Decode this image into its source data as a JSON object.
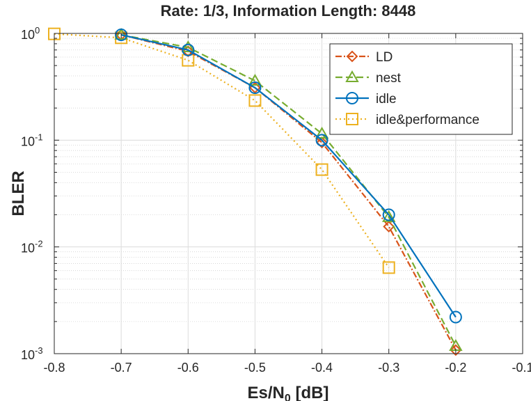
{
  "chart_data": {
    "type": "line",
    "title": "Rate: 1/3, Information Length: 8448",
    "xlabel": {
      "main": "Es/N",
      "sub": "0",
      "unit": " [dB]"
    },
    "ylabel": "BLER",
    "xlim": [
      -0.8,
      -0.1
    ],
    "ylim": [
      0.001,
      1
    ],
    "yscale": "log",
    "grid": true,
    "minor_grid": true,
    "legend_position": "top-right",
    "x_ticks": [
      {
        "value": -0.8,
        "label": "-0.8"
      },
      {
        "value": -0.7,
        "label": "-0.7"
      },
      {
        "value": -0.6,
        "label": "-0.6"
      },
      {
        "value": -0.5,
        "label": "-0.5"
      },
      {
        "value": -0.4,
        "label": "-0.4"
      },
      {
        "value": -0.3,
        "label": "-0.3"
      },
      {
        "value": -0.2,
        "label": "-0.2"
      },
      {
        "value": -0.1,
        "label": "-0.1"
      }
    ],
    "y_ticks": [
      {
        "value": 1,
        "base": "10",
        "exp": "0"
      },
      {
        "value": 0.1,
        "base": "10",
        "exp": "-1"
      },
      {
        "value": 0.01,
        "base": "10",
        "exp": "-2"
      },
      {
        "value": 0.001,
        "base": "10",
        "exp": "-3"
      }
    ],
    "series": [
      {
        "name": "LD",
        "color": "#D95319",
        "dash": "9 3 2 3",
        "marker": "diamond",
        "x": [
          -0.7,
          -0.6,
          -0.5,
          -0.4,
          -0.3,
          -0.2
        ],
        "y": [
          0.97,
          0.68,
          0.31,
          0.095,
          0.0155,
          0.00108
        ]
      },
      {
        "name": "nest",
        "color": "#77AC30",
        "dash": "10 5",
        "marker": "triangle",
        "x": [
          -0.7,
          -0.6,
          -0.5,
          -0.4,
          -0.3,
          -0.2
        ],
        "y": [
          0.97,
          0.74,
          0.36,
          0.115,
          0.019,
          0.00118
        ]
      },
      {
        "name": "idle",
        "color": "#0072BD",
        "dash": "",
        "marker": "circle",
        "x": [
          -0.7,
          -0.6,
          -0.5,
          -0.4,
          -0.3,
          -0.2
        ],
        "y": [
          0.97,
          0.7,
          0.31,
          0.1,
          0.02,
          0.0022
        ]
      },
      {
        "name": "idle&performance",
        "color": "#EDB120",
        "dash": "2 4",
        "marker": "square",
        "x": [
          -0.8,
          -0.7,
          -0.6,
          -0.5,
          -0.4,
          -0.3
        ],
        "y": [
          0.99,
          0.91,
          0.56,
          0.235,
          0.053,
          0.0064
        ]
      }
    ]
  }
}
